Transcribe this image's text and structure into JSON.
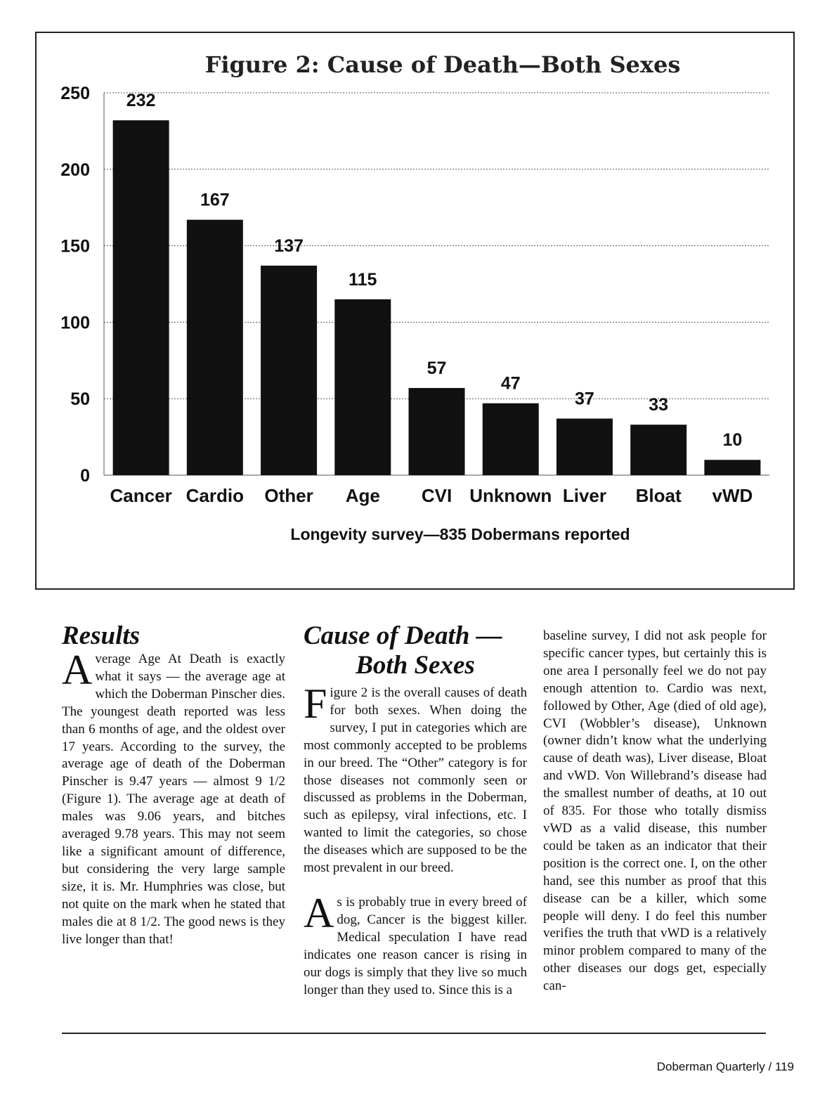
{
  "chart_data": {
    "type": "bar",
    "title": "Figure 2: Cause of Death—Both Sexes",
    "xlabel": "Longevity survey—835 Dobermans reported",
    "ylabel": "",
    "categories": [
      "Cancer",
      "Cardio",
      "Other",
      "Age",
      "CVI",
      "Unknown",
      "Liver",
      "Bloat",
      "vWD"
    ],
    "values": [
      232,
      167,
      137,
      115,
      57,
      47,
      37,
      33,
      10
    ],
    "data_labels": [
      "232",
      "167",
      "137",
      "115",
      "57",
      "47",
      "37",
      "33",
      "10"
    ],
    "ylim": [
      0,
      250
    ],
    "yticks": [
      0,
      50,
      100,
      150,
      200,
      250
    ],
    "grid": true,
    "bar_color": "#111111"
  },
  "results": {
    "heading": "Results",
    "drop_cap": "A",
    "text": "verage Age At Death is exactly what it says — the average age at which the Doberman Pinscher dies. The youngest death reported was less than 6 months of age, and the oldest over 17 years. According to the survey, the average age of death of the Doberman Pinscher is 9.47 years — almost 9 1/2 (Figure 1). The average age at death of males was 9.06 years, and bitches averaged 9.78 years. This may not seem like a significant amount of difference, but considering the very large sample size, it is. Mr. Humphries was close, but not quite on the mark when he stated that males die at 8 1/2. The good news is they live longer than that!"
  },
  "cause": {
    "heading_line1": "Cause of Death —",
    "heading_line2": "Both Sexes",
    "p1_drop": "F",
    "p1": "igure 2 is the overall causes of death for both sexes. When doing the survey, I put in categories which are most commonly accepted to be problems in our breed. The “Other” category is for those diseases not commonly seen or discussed as problems in the Doberman, such as epilepsy, viral infections, etc. I wanted to limit the categories, so chose the diseases which are supposed to be the most prevalent in our breed.",
    "p2_drop": "A",
    "p2": "s is probably true in every breed of dog, Cancer is the biggest killer. Medical speculation I have read indicates one reason cancer is rising in our dogs is simply that they live so much longer than they used to. Since this is a",
    "p3": "baseline survey, I did not ask people for specific cancer types, but certainly this is one area I personally feel we do not pay enough attention to. Cardio was next, followed by Other, Age (died of old age), CVI (Wobbler’s disease), Unknown (owner didn’t know what the underlying cause of death was), Liver disease, Bloat and vWD. Von Willebrand’s disease had the smallest number of deaths, at 10 out of 835. For those who totally dismiss vWD as a valid disease, this number could be taken as an indicator that their position is the correct one. I, on the other hand, see this number as proof that this disease can be a killer, which some people will deny. I do feel this number verifies the truth that vWD is a relatively minor problem compared to many of the other diseases our dogs get, especially can-"
  },
  "footer": {
    "text": "Doberman Quarterly / 119"
  }
}
